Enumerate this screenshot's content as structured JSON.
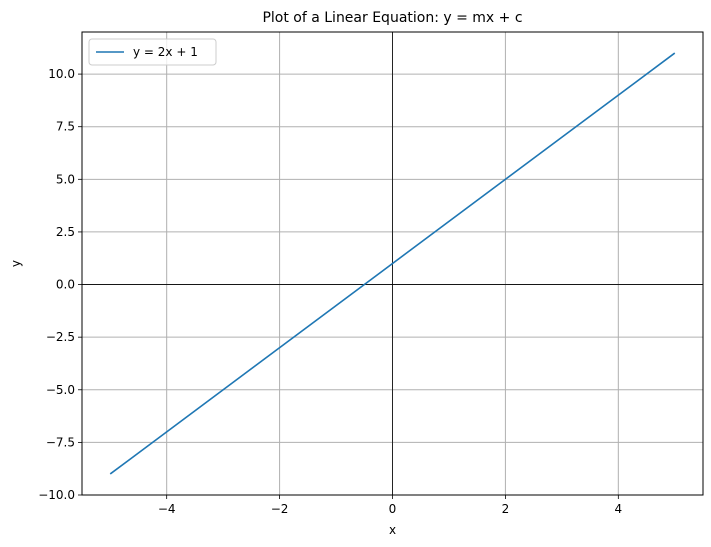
{
  "chart_data": {
    "type": "line",
    "title": "Plot of a Linear Equation: y = mx + c",
    "xlabel": "x",
    "ylabel": "y",
    "xlim": [
      -5.5,
      5.5
    ],
    "ylim": [
      -10,
      12
    ],
    "xticks": [
      -4,
      -2,
      0,
      2,
      4
    ],
    "xtick_labels": [
      "−4",
      "−2",
      "0",
      "2",
      "4"
    ],
    "yticks": [
      -10,
      -7.5,
      -5,
      -2.5,
      0,
      2.5,
      5,
      7.5,
      10
    ],
    "ytick_labels": [
      "−10.0",
      "−7.5",
      "−5.0",
      "−2.5",
      "0.0",
      "2.5",
      "5.0",
      "7.5",
      "10.0"
    ],
    "grid": true,
    "zero_lines": true,
    "legend_position": "top-left",
    "series": [
      {
        "name": "y = 2x + 1",
        "color": "#1f77b4",
        "x": [
          -5,
          5
        ],
        "y": [
          -9,
          11
        ]
      }
    ]
  }
}
